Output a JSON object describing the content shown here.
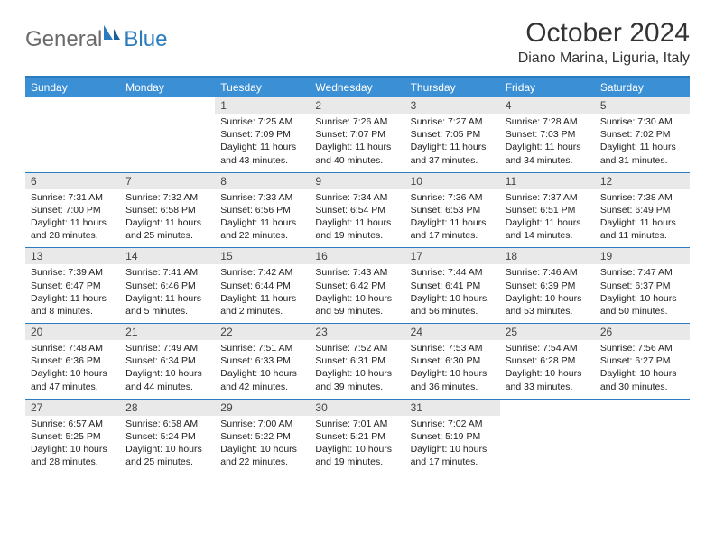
{
  "logo": {
    "general": "General",
    "blue": "Blue"
  },
  "title": "October 2024",
  "location": "Diano Marina, Liguria, Italy",
  "colors": {
    "header_bg": "#3b8fd4",
    "border": "#2b7bbf",
    "daynum_bg": "#e9e9e9",
    "text": "#222222",
    "logo_gray": "#6a6a6a",
    "logo_blue": "#2b7bbf"
  },
  "dow": [
    "Sunday",
    "Monday",
    "Tuesday",
    "Wednesday",
    "Thursday",
    "Friday",
    "Saturday"
  ],
  "weeks": [
    [
      {
        "n": "",
        "sr": "",
        "ss": "",
        "dl": ""
      },
      {
        "n": "",
        "sr": "",
        "ss": "",
        "dl": ""
      },
      {
        "n": "1",
        "sr": "Sunrise: 7:25 AM",
        "ss": "Sunset: 7:09 PM",
        "dl": "Daylight: 11 hours and 43 minutes."
      },
      {
        "n": "2",
        "sr": "Sunrise: 7:26 AM",
        "ss": "Sunset: 7:07 PM",
        "dl": "Daylight: 11 hours and 40 minutes."
      },
      {
        "n": "3",
        "sr": "Sunrise: 7:27 AM",
        "ss": "Sunset: 7:05 PM",
        "dl": "Daylight: 11 hours and 37 minutes."
      },
      {
        "n": "4",
        "sr": "Sunrise: 7:28 AM",
        "ss": "Sunset: 7:03 PM",
        "dl": "Daylight: 11 hours and 34 minutes."
      },
      {
        "n": "5",
        "sr": "Sunrise: 7:30 AM",
        "ss": "Sunset: 7:02 PM",
        "dl": "Daylight: 11 hours and 31 minutes."
      }
    ],
    [
      {
        "n": "6",
        "sr": "Sunrise: 7:31 AM",
        "ss": "Sunset: 7:00 PM",
        "dl": "Daylight: 11 hours and 28 minutes."
      },
      {
        "n": "7",
        "sr": "Sunrise: 7:32 AM",
        "ss": "Sunset: 6:58 PM",
        "dl": "Daylight: 11 hours and 25 minutes."
      },
      {
        "n": "8",
        "sr": "Sunrise: 7:33 AM",
        "ss": "Sunset: 6:56 PM",
        "dl": "Daylight: 11 hours and 22 minutes."
      },
      {
        "n": "9",
        "sr": "Sunrise: 7:34 AM",
        "ss": "Sunset: 6:54 PM",
        "dl": "Daylight: 11 hours and 19 minutes."
      },
      {
        "n": "10",
        "sr": "Sunrise: 7:36 AM",
        "ss": "Sunset: 6:53 PM",
        "dl": "Daylight: 11 hours and 17 minutes."
      },
      {
        "n": "11",
        "sr": "Sunrise: 7:37 AM",
        "ss": "Sunset: 6:51 PM",
        "dl": "Daylight: 11 hours and 14 minutes."
      },
      {
        "n": "12",
        "sr": "Sunrise: 7:38 AM",
        "ss": "Sunset: 6:49 PM",
        "dl": "Daylight: 11 hours and 11 minutes."
      }
    ],
    [
      {
        "n": "13",
        "sr": "Sunrise: 7:39 AM",
        "ss": "Sunset: 6:47 PM",
        "dl": "Daylight: 11 hours and 8 minutes."
      },
      {
        "n": "14",
        "sr": "Sunrise: 7:41 AM",
        "ss": "Sunset: 6:46 PM",
        "dl": "Daylight: 11 hours and 5 minutes."
      },
      {
        "n": "15",
        "sr": "Sunrise: 7:42 AM",
        "ss": "Sunset: 6:44 PM",
        "dl": "Daylight: 11 hours and 2 minutes."
      },
      {
        "n": "16",
        "sr": "Sunrise: 7:43 AM",
        "ss": "Sunset: 6:42 PM",
        "dl": "Daylight: 10 hours and 59 minutes."
      },
      {
        "n": "17",
        "sr": "Sunrise: 7:44 AM",
        "ss": "Sunset: 6:41 PM",
        "dl": "Daylight: 10 hours and 56 minutes."
      },
      {
        "n": "18",
        "sr": "Sunrise: 7:46 AM",
        "ss": "Sunset: 6:39 PM",
        "dl": "Daylight: 10 hours and 53 minutes."
      },
      {
        "n": "19",
        "sr": "Sunrise: 7:47 AM",
        "ss": "Sunset: 6:37 PM",
        "dl": "Daylight: 10 hours and 50 minutes."
      }
    ],
    [
      {
        "n": "20",
        "sr": "Sunrise: 7:48 AM",
        "ss": "Sunset: 6:36 PM",
        "dl": "Daylight: 10 hours and 47 minutes."
      },
      {
        "n": "21",
        "sr": "Sunrise: 7:49 AM",
        "ss": "Sunset: 6:34 PM",
        "dl": "Daylight: 10 hours and 44 minutes."
      },
      {
        "n": "22",
        "sr": "Sunrise: 7:51 AM",
        "ss": "Sunset: 6:33 PM",
        "dl": "Daylight: 10 hours and 42 minutes."
      },
      {
        "n": "23",
        "sr": "Sunrise: 7:52 AM",
        "ss": "Sunset: 6:31 PM",
        "dl": "Daylight: 10 hours and 39 minutes."
      },
      {
        "n": "24",
        "sr": "Sunrise: 7:53 AM",
        "ss": "Sunset: 6:30 PM",
        "dl": "Daylight: 10 hours and 36 minutes."
      },
      {
        "n": "25",
        "sr": "Sunrise: 7:54 AM",
        "ss": "Sunset: 6:28 PM",
        "dl": "Daylight: 10 hours and 33 minutes."
      },
      {
        "n": "26",
        "sr": "Sunrise: 7:56 AM",
        "ss": "Sunset: 6:27 PM",
        "dl": "Daylight: 10 hours and 30 minutes."
      }
    ],
    [
      {
        "n": "27",
        "sr": "Sunrise: 6:57 AM",
        "ss": "Sunset: 5:25 PM",
        "dl": "Daylight: 10 hours and 28 minutes."
      },
      {
        "n": "28",
        "sr": "Sunrise: 6:58 AM",
        "ss": "Sunset: 5:24 PM",
        "dl": "Daylight: 10 hours and 25 minutes."
      },
      {
        "n": "29",
        "sr": "Sunrise: 7:00 AM",
        "ss": "Sunset: 5:22 PM",
        "dl": "Daylight: 10 hours and 22 minutes."
      },
      {
        "n": "30",
        "sr": "Sunrise: 7:01 AM",
        "ss": "Sunset: 5:21 PM",
        "dl": "Daylight: 10 hours and 19 minutes."
      },
      {
        "n": "31",
        "sr": "Sunrise: 7:02 AM",
        "ss": "Sunset: 5:19 PM",
        "dl": "Daylight: 10 hours and 17 minutes."
      },
      {
        "n": "",
        "sr": "",
        "ss": "",
        "dl": ""
      },
      {
        "n": "",
        "sr": "",
        "ss": "",
        "dl": ""
      }
    ]
  ]
}
